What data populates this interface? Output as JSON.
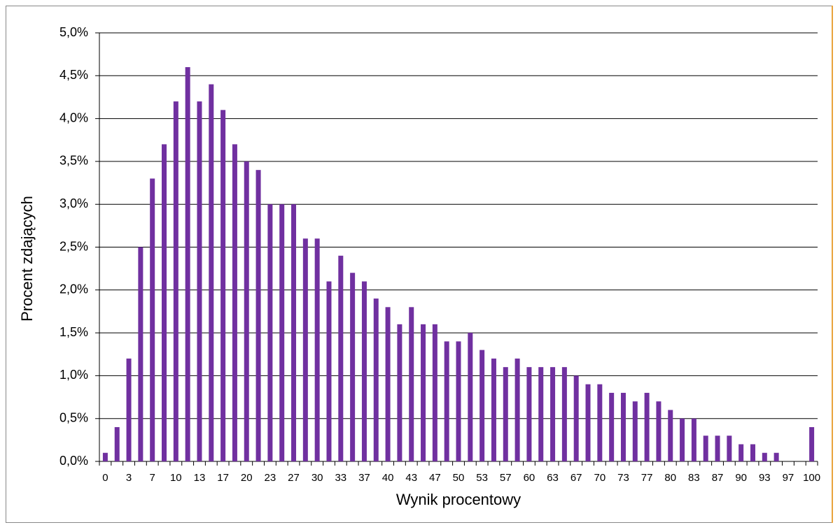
{
  "chart_data": {
    "type": "bar",
    "x_label": "Wynik procentowy",
    "y_label": "Procent zdających",
    "categories": [
      "0",
      null,
      "3",
      null,
      "7",
      null,
      "10",
      null,
      "13",
      null,
      "17",
      null,
      "20",
      null,
      "23",
      null,
      "27",
      null,
      "30",
      null,
      "33",
      null,
      "37",
      null,
      "40",
      null,
      "43",
      null,
      "47",
      null,
      "50",
      null,
      "53",
      null,
      "57",
      null,
      "60",
      null,
      "63",
      null,
      "67",
      null,
      "70",
      null,
      "73",
      null,
      "77",
      null,
      "80",
      null,
      "83",
      null,
      "87",
      null,
      "90",
      null,
      "93",
      null,
      "97",
      null,
      "100"
    ],
    "values": [
      0.1,
      0.4,
      1.2,
      2.5,
      3.3,
      3.7,
      4.2,
      4.6,
      4.2,
      4.4,
      4.1,
      3.7,
      3.5,
      3.4,
      3.0,
      3.0,
      3.0,
      2.6,
      2.6,
      2.1,
      2.4,
      2.2,
      2.1,
      1.9,
      1.8,
      1.6,
      1.8,
      1.6,
      1.6,
      1.4,
      1.4,
      1.5,
      1.3,
      1.2,
      1.1,
      1.2,
      1.1,
      1.1,
      1.1,
      1.1,
      1.0,
      0.9,
      0.9,
      0.8,
      0.8,
      0.7,
      0.8,
      0.7,
      0.6,
      0.5,
      0.5,
      0.3,
      0.3,
      0.3,
      0.2,
      0.2,
      0.1,
      0.1,
      0,
      0,
      0.4
    ],
    "color": "#7030a0",
    "ylim": [
      0,
      5
    ],
    "yticks": [
      {
        "value": 0,
        "label": "0,0%"
      },
      {
        "value": 0.5,
        "label": "0,5%"
      },
      {
        "value": 1,
        "label": "1,0%"
      },
      {
        "value": 1.5,
        "label": "1,5%"
      },
      {
        "value": 2,
        "label": "2,0%"
      },
      {
        "value": 2.5,
        "label": "2,5%"
      },
      {
        "value": 3,
        "label": "3,0%"
      },
      {
        "value": 3.5,
        "label": "3,5%"
      },
      {
        "value": 4,
        "label": "4,0%"
      },
      {
        "value": 4.5,
        "label": "4,5%"
      },
      {
        "value": 5,
        "label": "5,0%"
      }
    ],
    "grid": true
  }
}
